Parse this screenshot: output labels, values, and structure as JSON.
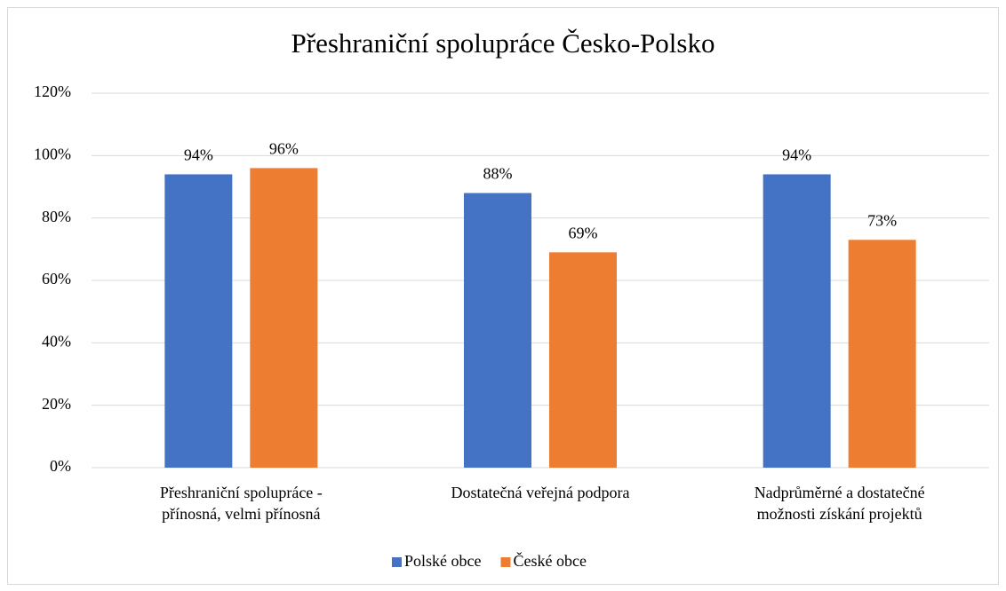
{
  "chart_data": {
    "type": "bar",
    "title": "Přeshraniční spolupráce Česko-Polsko",
    "categories": [
      "Přeshraniční spolupráce - přínosná, velmi přínosná",
      "Dostatečná veřejná podpora",
      "Nadprůměrné a dostatečné možnosti získání projektů"
    ],
    "series": [
      {
        "name": "Polské obce",
        "color": "#4472c4",
        "values": [
          94,
          88,
          94
        ],
        "value_labels": [
          "94%",
          "88%",
          "94%"
        ]
      },
      {
        "name": "České obce",
        "color": "#ed7d31",
        "values": [
          96,
          69,
          73
        ],
        "value_labels": [
          "96%",
          "69%",
          "73%"
        ]
      }
    ],
    "ylim": [
      0,
      120
    ],
    "yticks": [
      {
        "value": 0,
        "label": "0%"
      },
      {
        "value": 20,
        "label": "20%"
      },
      {
        "value": 40,
        "label": "40%"
      },
      {
        "value": 60,
        "label": "60%"
      },
      {
        "value": 80,
        "label": "80%"
      },
      {
        "value": 100,
        "label": "100%"
      },
      {
        "value": 120,
        "label": "120%"
      }
    ],
    "grid": true,
    "legend": "bottom"
  }
}
